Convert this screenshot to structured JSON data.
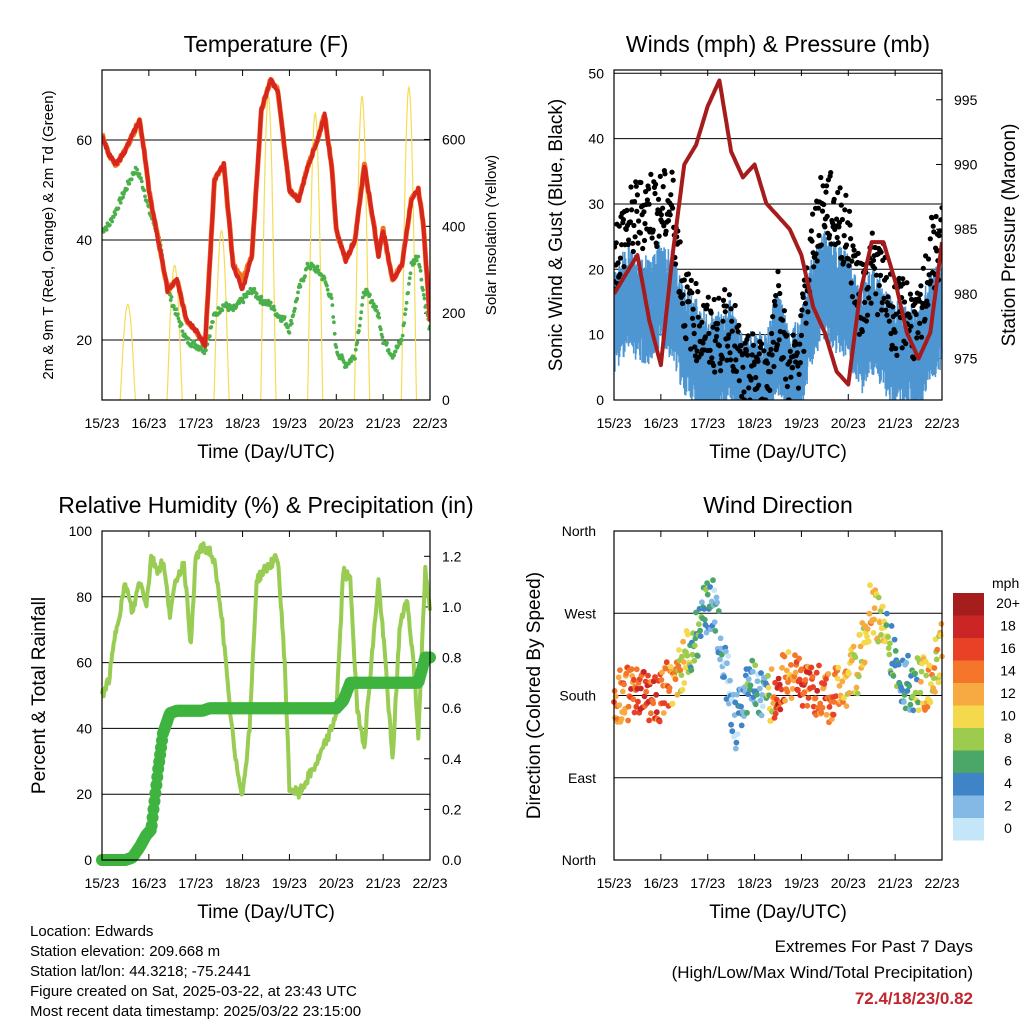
{
  "colors": {
    "t2m": "#d7261e",
    "t9m": "#f3741f",
    "td2m": "#4bb04a",
    "solar": "#f5dc55",
    "wind_sonic": "#4d96d2",
    "gust": "#000000",
    "pressure": "#a61c1c",
    "rh": "#98cc52",
    "precip": "#3fb33f",
    "extremes_text": "#c0262d"
  },
  "x_ticks": [
    "15/23",
    "16/23",
    "17/23",
    "18/23",
    "19/23",
    "20/23",
    "21/23",
    "22/23"
  ],
  "x_label": "Time (Day/UTC)",
  "chart_data": [
    {
      "type": "line",
      "title": "Temperature (F)",
      "xlabel": "Time (Day/UTC)",
      "ylabel": "2m & 9m T (Red, Orange) & 2m Td (Green)",
      "y2label": "Solar Insolation (Yellow)",
      "ylim": [
        8,
        74
      ],
      "y_ticks": [
        20,
        40,
        60
      ],
      "y2lim": [
        0,
        760
      ],
      "y2_ticks": [
        0,
        200,
        400,
        600
      ],
      "grid": true,
      "x": [
        0,
        0.15,
        0.3,
        0.5,
        0.7,
        0.8,
        0.9,
        1.0,
        1.2,
        1.4,
        1.6,
        1.8,
        2.0,
        2.2,
        2.4,
        2.6,
        2.8,
        3.0,
        3.2,
        3.4,
        3.6,
        3.75,
        3.9,
        4.0,
        4.2,
        4.4,
        4.6,
        4.75,
        4.9,
        5.0,
        5.2,
        5.4,
        5.6,
        5.75,
        5.9,
        6.0,
        6.2,
        6.4,
        6.6,
        6.75,
        6.85,
        7.0
      ],
      "series": [
        {
          "name": "2m T",
          "values": [
            61,
            57,
            55,
            58,
            62,
            64,
            58,
            50,
            40,
            30,
            32,
            24,
            22,
            19,
            52,
            55,
            35,
            30,
            37,
            66,
            72,
            70,
            58,
            50,
            48,
            55,
            60,
            65,
            55,
            42,
            36,
            40,
            55,
            46,
            37,
            42,
            32,
            35,
            48,
            50,
            44,
            24
          ]
        },
        {
          "name": "9m T",
          "values": [
            61,
            57,
            55,
            58,
            62,
            64,
            58,
            50,
            40,
            30,
            32,
            24,
            22,
            19,
            52,
            55,
            35,
            32,
            37,
            66,
            72,
            70,
            58,
            50,
            48,
            55,
            60,
            65,
            55,
            42,
            36,
            40,
            55,
            46,
            37,
            42,
            32,
            35,
            48,
            50,
            44,
            24
          ]
        },
        {
          "name": "2m Td",
          "values": [
            42,
            43,
            46,
            50,
            54,
            53,
            50,
            46,
            41,
            30,
            25,
            20,
            19,
            18,
            25,
            27,
            26,
            28,
            30,
            28,
            27,
            25,
            24,
            22,
            30,
            35,
            34,
            32,
            28,
            18,
            15,
            17,
            30,
            28,
            25,
            20,
            17,
            20,
            35,
            37,
            30,
            22
          ]
        }
      ],
      "solar_days": [
        0.55,
        1.55,
        2.55,
        3.55,
        4.55,
        5.55,
        6.55
      ],
      "solar_peaks": [
        220,
        310,
        390,
        700,
        660,
        700,
        720
      ]
    },
    {
      "type": "scatter",
      "title": "Winds (mph) & Pressure (mb)",
      "xlabel": "Time (Day/UTC)",
      "ylabel": "Sonic Wind & Gust (Blue, Black)",
      "y2label": "Station Pressure (Maroon)",
      "ylim": [
        0,
        50.5
      ],
      "y_ticks": [
        0,
        10,
        20,
        30,
        40,
        50
      ],
      "y2lim": [
        971.8,
        997.3
      ],
      "y2_ticks": [
        975,
        980,
        985,
        990,
        995
      ],
      "grid": true,
      "x": [
        0,
        0.25,
        0.5,
        0.75,
        1.0,
        1.25,
        1.5,
        1.75,
        2.0,
        2.25,
        2.5,
        2.75,
        3.0,
        3.25,
        3.5,
        3.75,
        4.0,
        4.25,
        4.5,
        4.75,
        5.0,
        5.25,
        5.5,
        5.75,
        6.0,
        6.25,
        6.5,
        6.75,
        7.0
      ],
      "series": [
        {
          "name": "Sonic Wind",
          "values": [
            13,
            16,
            15,
            14,
            17,
            15,
            9,
            8,
            5,
            6,
            8,
            2,
            3,
            2,
            10,
            2,
            6,
            15,
            18,
            16,
            15,
            9,
            13,
            10,
            7,
            8,
            6,
            12,
            13
          ]
        },
        {
          "name": "Gust",
          "values": [
            22,
            26,
            28,
            30,
            29,
            30,
            15,
            12,
            10,
            10,
            12,
            3,
            5,
            3,
            15,
            3,
            9,
            25,
            30,
            28,
            25,
            15,
            20,
            18,
            12,
            14,
            10,
            22,
            24
          ]
        },
        {
          "name": "Station Pressure",
          "values": [
            980,
            981.5,
            983,
            978,
            974.5,
            983,
            990,
            991.5,
            994.5,
            996.5,
            991,
            989,
            990,
            987,
            986,
            985,
            983,
            979,
            977,
            974,
            973,
            980,
            984,
            984,
            981,
            977,
            975,
            977,
            984
          ]
        }
      ]
    },
    {
      "type": "line",
      "title": "Relative Humidity (%) & Precipitation (in)",
      "xlabel": "Time (Day/UTC)",
      "ylabel": "Percent & Total Rainfall",
      "ylim": [
        0,
        100
      ],
      "y_ticks": [
        0,
        20,
        40,
        60,
        80,
        100
      ],
      "y2lim": [
        0,
        1.3
      ],
      "y2_ticks": [
        0.0,
        0.2,
        0.4,
        0.6,
        0.8,
        1.0,
        1.2
      ],
      "grid": true,
      "x": [
        0,
        0.15,
        0.3,
        0.5,
        0.65,
        0.8,
        0.95,
        1.05,
        1.2,
        1.3,
        1.45,
        1.6,
        1.75,
        1.9,
        2.0,
        2.15,
        2.3,
        2.4,
        2.55,
        2.7,
        2.85,
        3.0,
        3.15,
        3.3,
        3.45,
        3.6,
        3.75,
        3.9,
        4.0,
        4.2,
        4.4,
        4.6,
        4.75,
        4.9,
        5.0,
        5.15,
        5.3,
        5.45,
        5.6,
        5.75,
        5.9,
        6.05,
        6.2,
        6.35,
        6.5,
        6.65,
        6.75,
        6.9,
        7.0
      ],
      "series": [
        {
          "name": "Relative Humidity",
          "values": [
            50,
            55,
            70,
            84,
            75,
            85,
            78,
            92,
            88,
            91,
            75,
            86,
            90,
            65,
            92,
            95,
            94,
            90,
            75,
            50,
            30,
            20,
            40,
            85,
            88,
            90,
            92,
            60,
            22,
            20,
            25,
            30,
            35,
            40,
            45,
            88,
            85,
            45,
            35,
            60,
            85,
            60,
            30,
            70,
            80,
            60,
            38,
            88,
            75
          ]
        },
        {
          "name": "Total Precipitation",
          "values": [
            0,
            0,
            0,
            0,
            0.01,
            0.05,
            0.1,
            0.12,
            0.36,
            0.5,
            0.58,
            0.59,
            0.59,
            0.59,
            0.59,
            0.59,
            0.6,
            0.6,
            0.6,
            0.6,
            0.6,
            0.6,
            0.6,
            0.6,
            0.6,
            0.6,
            0.6,
            0.6,
            0.6,
            0.6,
            0.6,
            0.6,
            0.6,
            0.6,
            0.6,
            0.63,
            0.7,
            0.7,
            0.7,
            0.7,
            0.7,
            0.7,
            0.7,
            0.7,
            0.7,
            0.7,
            0.7,
            0.8,
            0.8
          ]
        }
      ]
    },
    {
      "type": "scatter",
      "title": "Wind Direction",
      "xlabel": "Time (Day/UTC)",
      "ylabel": "Direction (Colored By Speed)",
      "y_ticks": [
        "North",
        "East",
        "South",
        "West",
        "North"
      ],
      "ylim": [
        0,
        360
      ],
      "grid": true,
      "legend": {
        "title": "mph",
        "labels": [
          "20+",
          "18",
          "16",
          "14",
          "12",
          "10",
          "8",
          "6",
          "4",
          "2",
          "0"
        ],
        "colors": [
          "#a51d1d",
          "#cc2525",
          "#e84126",
          "#f5762b",
          "#f8aa42",
          "#f3d94b",
          "#9ccb4d",
          "#4aa768",
          "#3f84c6",
          "#84b9e6",
          "#c5e6f8"
        ],
        "placement": "right"
      },
      "x": [
        0,
        0.5,
        1.0,
        1.3,
        1.6,
        1.9,
        2.1,
        2.3,
        2.6,
        2.9,
        3.2,
        3.5,
        3.7,
        4.0,
        4.3,
        4.6,
        4.9,
        5.2,
        5.5,
        5.8,
        6.1,
        6.4,
        6.7,
        7.0
      ],
      "series": [
        {
          "name": "direction",
          "values": [
            180,
            182,
            178,
            200,
            225,
            270,
            280,
            230,
            150,
            200,
            180,
            180,
            210,
            188,
            185,
            180,
            190,
            210,
            280,
            250,
            200,
            190,
            195,
            230
          ]
        },
        {
          "name": "speed",
          "values": [
            14,
            16,
            15,
            12,
            8,
            5,
            4,
            3,
            2,
            5,
            3,
            18,
            12,
            16,
            15,
            14,
            12,
            10,
            11,
            8,
            4,
            6,
            12,
            10
          ]
        }
      ]
    }
  ],
  "info": {
    "location": "Location: Edwards",
    "elevation": "Station elevation: 209.668 m",
    "latlon": "Station lat/lon: 44.3218; -75.2441",
    "created": "Figure created on Sat, 2025-03-22, at 23:43 UTC",
    "latest": "Most recent data timestamp: 2025/03/22 23:15:00"
  },
  "extremes": {
    "line1": "Extremes For Past 7 Days",
    "line2": "(High/Low/Max Wind/Total Precipitation)",
    "values": "72.4/18/23/0.82"
  }
}
